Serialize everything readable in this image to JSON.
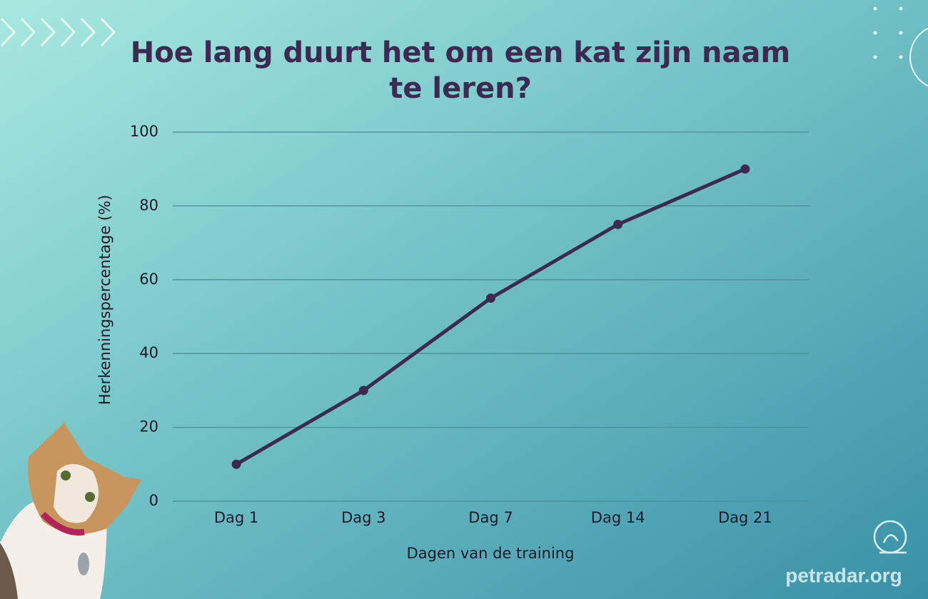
{
  "chart_data": {
    "type": "line",
    "title": "Hoe lang duurt het om een kat zijn naam te leren?",
    "x_label": "Dagen van de training",
    "y_label": "Herkenningspercentage (%)",
    "categories": [
      "Dag 1",
      "Dag 3",
      "Dag 7",
      "Dag 14",
      "Dag 21"
    ],
    "values": [
      10,
      30,
      55,
      75,
      90
    ],
    "color": "#3d2a52",
    "ylim": [
      0,
      100
    ],
    "yticks": [
      0,
      20,
      40,
      60,
      80,
      100
    ],
    "grid": true,
    "watermark": "petradar.org"
  }
}
